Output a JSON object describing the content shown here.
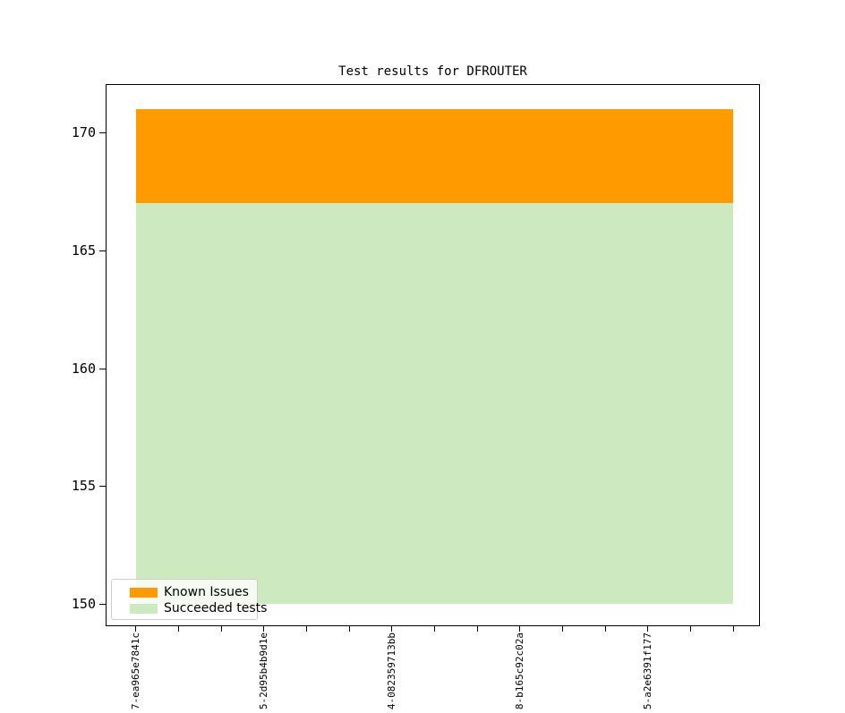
{
  "title": "Test results for DFROUTER",
  "legend": {
    "items": [
      {
        "label": "Known Issues",
        "color": "#ff9a00"
      },
      {
        "label": "Succeeded tests",
        "color": "#cce9c0"
      }
    ]
  },
  "chart_data": {
    "type": "area",
    "stacked": true,
    "title": "Test results for DFROUTER",
    "grid": false,
    "legend_position": "lower left",
    "num_points": 15,
    "x_tick_count": 15,
    "labeled_tick_indices": [
      0,
      3,
      6,
      9,
      12
    ],
    "x_tick_labels_visible": [
      "7-ea965e7841c",
      "5-2d95b4b9d1e",
      "4-082359713bb",
      "8-b165c92c02a",
      "5-a2e6391f177"
    ],
    "yticks": [
      170,
      165,
      160,
      155,
      150
    ],
    "ylim": [
      149.0,
      172.1
    ],
    "stack_baseline": 150,
    "stack_top": 171,
    "series": [
      {
        "name": "Succeeded tests",
        "color": "#cce9c0",
        "band": [
          150,
          167
        ],
        "values": [
          167,
          167,
          167,
          167,
          167,
          167,
          167,
          167,
          167,
          167,
          167,
          167,
          167,
          167,
          167
        ]
      },
      {
        "name": "Known Issues",
        "color": "#ff9a00",
        "band": [
          167,
          171
        ],
        "values": [
          4,
          4,
          4,
          4,
          4,
          4,
          4,
          4,
          4,
          4,
          4,
          4,
          4,
          4,
          4
        ]
      }
    ]
  }
}
